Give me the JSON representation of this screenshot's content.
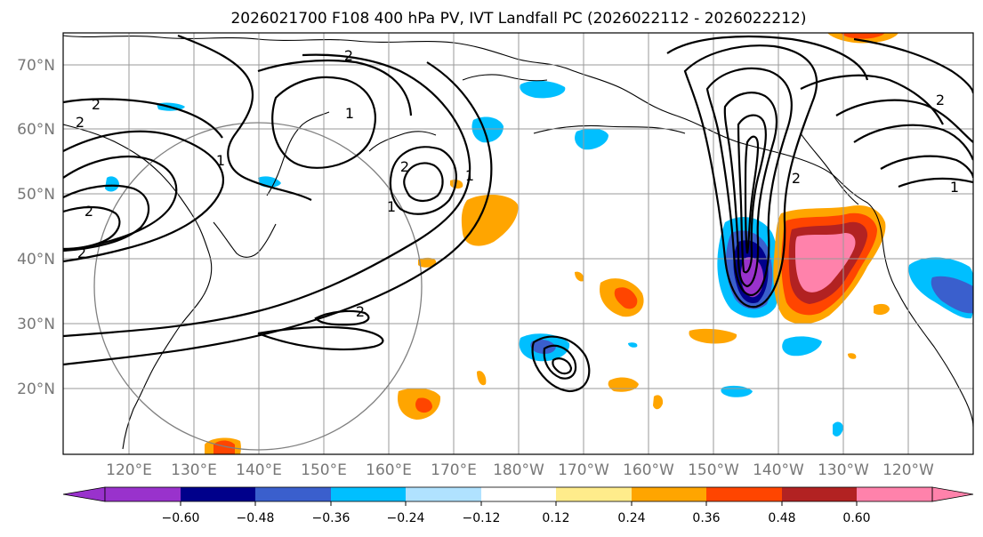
{
  "title": "2026021700 F108 400 hPa PV, IVT Landfall PC (2026022112 - 2026022212)",
  "map": {
    "lat_labels": [
      "70°N",
      "60°N",
      "50°N",
      "40°N",
      "30°N",
      "20°N"
    ],
    "lon_labels": [
      "120°E",
      "130°E",
      "140°E",
      "150°E",
      "160°E",
      "170°E",
      "180°W",
      "170°W",
      "160°W",
      "150°W",
      "140°W",
      "130°W",
      "120°W"
    ],
    "contour_labels": [
      "2",
      "2",
      "1",
      "2",
      "1",
      "2",
      "2",
      "2",
      "1",
      "2",
      "1",
      "2",
      "1",
      "2"
    ]
  },
  "colorbar": {
    "ticks": [
      "−0.60",
      "−0.48",
      "−0.36",
      "−0.24",
      "−0.12",
      "0.12",
      "0.24",
      "0.36",
      "0.48",
      "0.60"
    ],
    "colors": [
      "#9932cc",
      "#00008b",
      "#3a5fcd",
      "#00bfff",
      "#b0e2ff",
      "#ffffff",
      "#ffec8b",
      "#ffa500",
      "#ff4500",
      "#b22222",
      "#ff82ab"
    ]
  },
  "shading_colors": {
    "neg_strong": "#9932cc",
    "neg_dark": "#00008b",
    "neg_mid": "#3a5fcd",
    "neg_light": "#00bfff",
    "pos_light": "#ffa500",
    "pos_mid": "#ff4500",
    "pos_dark": "#b22222",
    "pos_strong": "#ff82ab"
  }
}
